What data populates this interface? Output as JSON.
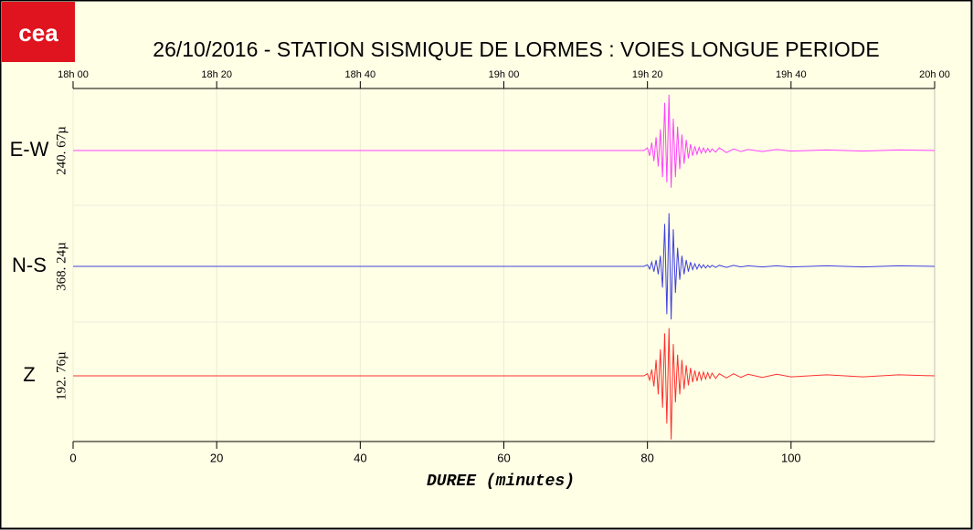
{
  "logo": "cea",
  "chart_data": {
    "type": "line",
    "title": "26/10/2016  -  STATION SISMIQUE DE LORMES : VOIES LONGUE PERIODE",
    "x_label": "DUREE (minutes)",
    "xlim": [
      0,
      120
    ],
    "xticks": [
      0,
      20,
      40,
      60,
      80,
      100
    ],
    "x2ticks": [
      {
        "value": 0,
        "label": "18h 00"
      },
      {
        "value": 20,
        "label": "18h 20"
      },
      {
        "value": 40,
        "label": "18h 40"
      },
      {
        "value": 60,
        "label": "19h 00"
      },
      {
        "value": 80,
        "label": "19h 20"
      },
      {
        "value": 100,
        "label": "19h 40"
      },
      {
        "value": 120,
        "label": "20h 00"
      }
    ],
    "ylim": [
      -1.1,
      1.1
    ],
    "grid": true,
    "x": [
      0,
      79.5,
      80,
      80.3,
      80.6,
      80.9,
      81.2,
      81.5,
      81.8,
      82.1,
      82.4,
      82.7,
      83,
      83.3,
      83.6,
      83.9,
      84.2,
      84.5,
      84.8,
      85.1,
      85.4,
      85.7,
      86,
      86.3,
      86.6,
      86.9,
      87.2,
      87.5,
      87.8,
      88.1,
      88.4,
      88.7,
      89,
      89.5,
      90,
      91,
      92,
      93,
      94,
      96,
      98,
      100,
      105,
      110,
      115,
      120
    ],
    "series": [
      {
        "name": "E-W",
        "scale_label": "240. 67µ",
        "color": "#ff40ff",
        "values": [
          0,
          0,
          0.05,
          -0.1,
          0.15,
          -0.2,
          0.25,
          -0.3,
          0.4,
          -0.5,
          0.9,
          -0.6,
          1.05,
          -0.7,
          0.6,
          -0.5,
          0.45,
          -0.35,
          0.3,
          -0.25,
          0.2,
          -0.15,
          0.12,
          -0.1,
          0.08,
          -0.07,
          0.06,
          -0.05,
          0.05,
          -0.04,
          0.04,
          -0.03,
          0.03,
          -0.03,
          0.05,
          -0.04,
          0.03,
          -0.02,
          0.02,
          -0.02,
          0.02,
          -0.01,
          0.01,
          -0.01,
          0.01,
          0
        ]
      },
      {
        "name": "N-S",
        "scale_label": "368. 24µ",
        "color": "#4040e0",
        "values": [
          0,
          0,
          0.03,
          -0.05,
          0.08,
          -0.1,
          0.12,
          -0.15,
          0.2,
          -0.4,
          0.8,
          -0.9,
          1.0,
          -1.0,
          0.7,
          -0.5,
          0.35,
          -0.25,
          0.2,
          -0.15,
          0.12,
          -0.1,
          0.08,
          -0.06,
          0.05,
          -0.05,
          0.04,
          -0.03,
          0.03,
          -0.03,
          0.02,
          -0.02,
          0.02,
          -0.02,
          0.02,
          -0.02,
          0.02,
          -0.01,
          0.01,
          -0.01,
          0.01,
          -0.01,
          0.01,
          -0.01,
          0.01,
          0
        ]
      },
      {
        "name": "Z",
        "scale_label": "192. 76µ",
        "color": "#ff3030",
        "values": [
          0,
          0,
          0.04,
          -0.08,
          0.12,
          -0.2,
          0.3,
          -0.35,
          0.5,
          -0.6,
          0.8,
          -0.9,
          0.9,
          -1.2,
          0.6,
          -0.5,
          0.4,
          -0.35,
          0.3,
          -0.25,
          0.2,
          -0.18,
          0.15,
          -0.12,
          0.1,
          -0.1,
          0.08,
          -0.08,
          0.07,
          -0.06,
          0.06,
          -0.05,
          0.05,
          -0.05,
          0.04,
          -0.04,
          0.04,
          -0.03,
          0.03,
          -0.03,
          0.03,
          -0.02,
          0.02,
          -0.02,
          0.02,
          0
        ]
      }
    ]
  }
}
